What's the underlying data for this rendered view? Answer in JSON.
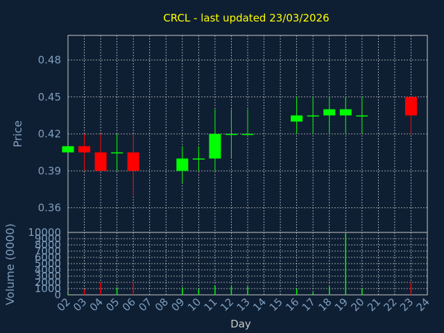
{
  "colors": {
    "background": "#0f1f33",
    "grid": "#c8c8c8",
    "axis_text": "#7f9fbf",
    "title": "#ffff00",
    "up": "#00ff00",
    "down": "#ff0000"
  },
  "chart_data": [
    {
      "type": "candlestick",
      "title": "CRCL - last updated 23/03/2026",
      "ylabel": "Price",
      "ylim": [
        0.34,
        0.5
      ],
      "yticks": [
        "0.48",
        "0.45",
        "0.42",
        "0.39",
        "0.36"
      ],
      "yticks_values": [
        0.48,
        0.45,
        0.42,
        0.39,
        0.36
      ],
      "grid": true,
      "candles": [
        {
          "day": 2,
          "open": 0.405,
          "high": 0.41,
          "low": 0.405,
          "close": 0.41
        },
        {
          "day": 3,
          "open": 0.41,
          "high": 0.42,
          "low": 0.39,
          "close": 0.405
        },
        {
          "day": 4,
          "open": 0.405,
          "high": 0.42,
          "low": 0.39,
          "close": 0.39
        },
        {
          "day": 5,
          "open": 0.405,
          "high": 0.42,
          "low": 0.39,
          "close": 0.405
        },
        {
          "day": 6,
          "open": 0.405,
          "high": 0.42,
          "low": 0.37,
          "close": 0.39
        },
        {
          "day": 9,
          "open": 0.39,
          "high": 0.41,
          "low": 0.38,
          "close": 0.4
        },
        {
          "day": 10,
          "open": 0.4,
          "high": 0.41,
          "low": 0.39,
          "close": 0.4
        },
        {
          "day": 11,
          "open": 0.4,
          "high": 0.44,
          "low": 0.39,
          "close": 0.42
        },
        {
          "day": 12,
          "open": 0.42,
          "high": 0.44,
          "low": 0.4,
          "close": 0.42
        },
        {
          "day": 13,
          "open": 0.42,
          "high": 0.44,
          "low": 0.42,
          "close": 0.42
        },
        {
          "day": 16,
          "open": 0.43,
          "high": 0.45,
          "low": 0.42,
          "close": 0.435
        },
        {
          "day": 17,
          "open": 0.435,
          "high": 0.45,
          "low": 0.42,
          "close": 0.435
        },
        {
          "day": 18,
          "open": 0.435,
          "high": 0.45,
          "low": 0.42,
          "close": 0.44
        },
        {
          "day": 19,
          "open": 0.435,
          "high": 0.45,
          "low": 0.42,
          "close": 0.44
        },
        {
          "day": 20,
          "open": 0.435,
          "high": 0.45,
          "low": 0.42,
          "close": 0.435
        },
        {
          "day": 23,
          "open": 0.45,
          "high": 0.45,
          "low": 0.42,
          "close": 0.435
        }
      ]
    },
    {
      "type": "bar",
      "ylabel": "Volume (0000)",
      "xlabel": "Day",
      "ylim": [
        0,
        10000
      ],
      "yticks": [
        "10000",
        "9000",
        "8000",
        "7000",
        "6000",
        "5000",
        "4000",
        "3000",
        "2000",
        "1000",
        "0"
      ],
      "yticks_values": [
        10000,
        9000,
        8000,
        7000,
        6000,
        5000,
        4000,
        3000,
        2000,
        1000,
        0
      ],
      "xticks": [
        "02",
        "03",
        "04",
        "05",
        "06",
        "07",
        "08",
        "09",
        "10",
        "11",
        "12",
        "13",
        "14",
        "15",
        "16",
        "17",
        "18",
        "19",
        "20",
        "21",
        "22",
        "23",
        "24"
      ],
      "xticks_values": [
        2,
        3,
        4,
        5,
        6,
        7,
        8,
        9,
        10,
        11,
        12,
        13,
        14,
        15,
        16,
        17,
        18,
        19,
        20,
        21,
        22,
        23,
        24
      ],
      "xlim": [
        2,
        24
      ],
      "grid": true,
      "bars": [
        {
          "day": 2,
          "value": 200,
          "dir": "up"
        },
        {
          "day": 3,
          "value": 900,
          "dir": "down"
        },
        {
          "day": 4,
          "value": 2000,
          "dir": "down"
        },
        {
          "day": 5,
          "value": 1200,
          "dir": "up"
        },
        {
          "day": 6,
          "value": 2000,
          "dir": "down"
        },
        {
          "day": 9,
          "value": 1200,
          "dir": "up"
        },
        {
          "day": 10,
          "value": 900,
          "dir": "up"
        },
        {
          "day": 11,
          "value": 1500,
          "dir": "up"
        },
        {
          "day": 12,
          "value": 1300,
          "dir": "up"
        },
        {
          "day": 13,
          "value": 1300,
          "dir": "up"
        },
        {
          "day": 16,
          "value": 1000,
          "dir": "up"
        },
        {
          "day": 17,
          "value": 400,
          "dir": "up"
        },
        {
          "day": 18,
          "value": 1300,
          "dir": "up"
        },
        {
          "day": 19,
          "value": 9800,
          "dir": "up"
        },
        {
          "day": 20,
          "value": 1000,
          "dir": "up"
        },
        {
          "day": 23,
          "value": 2000,
          "dir": "down"
        }
      ]
    }
  ]
}
